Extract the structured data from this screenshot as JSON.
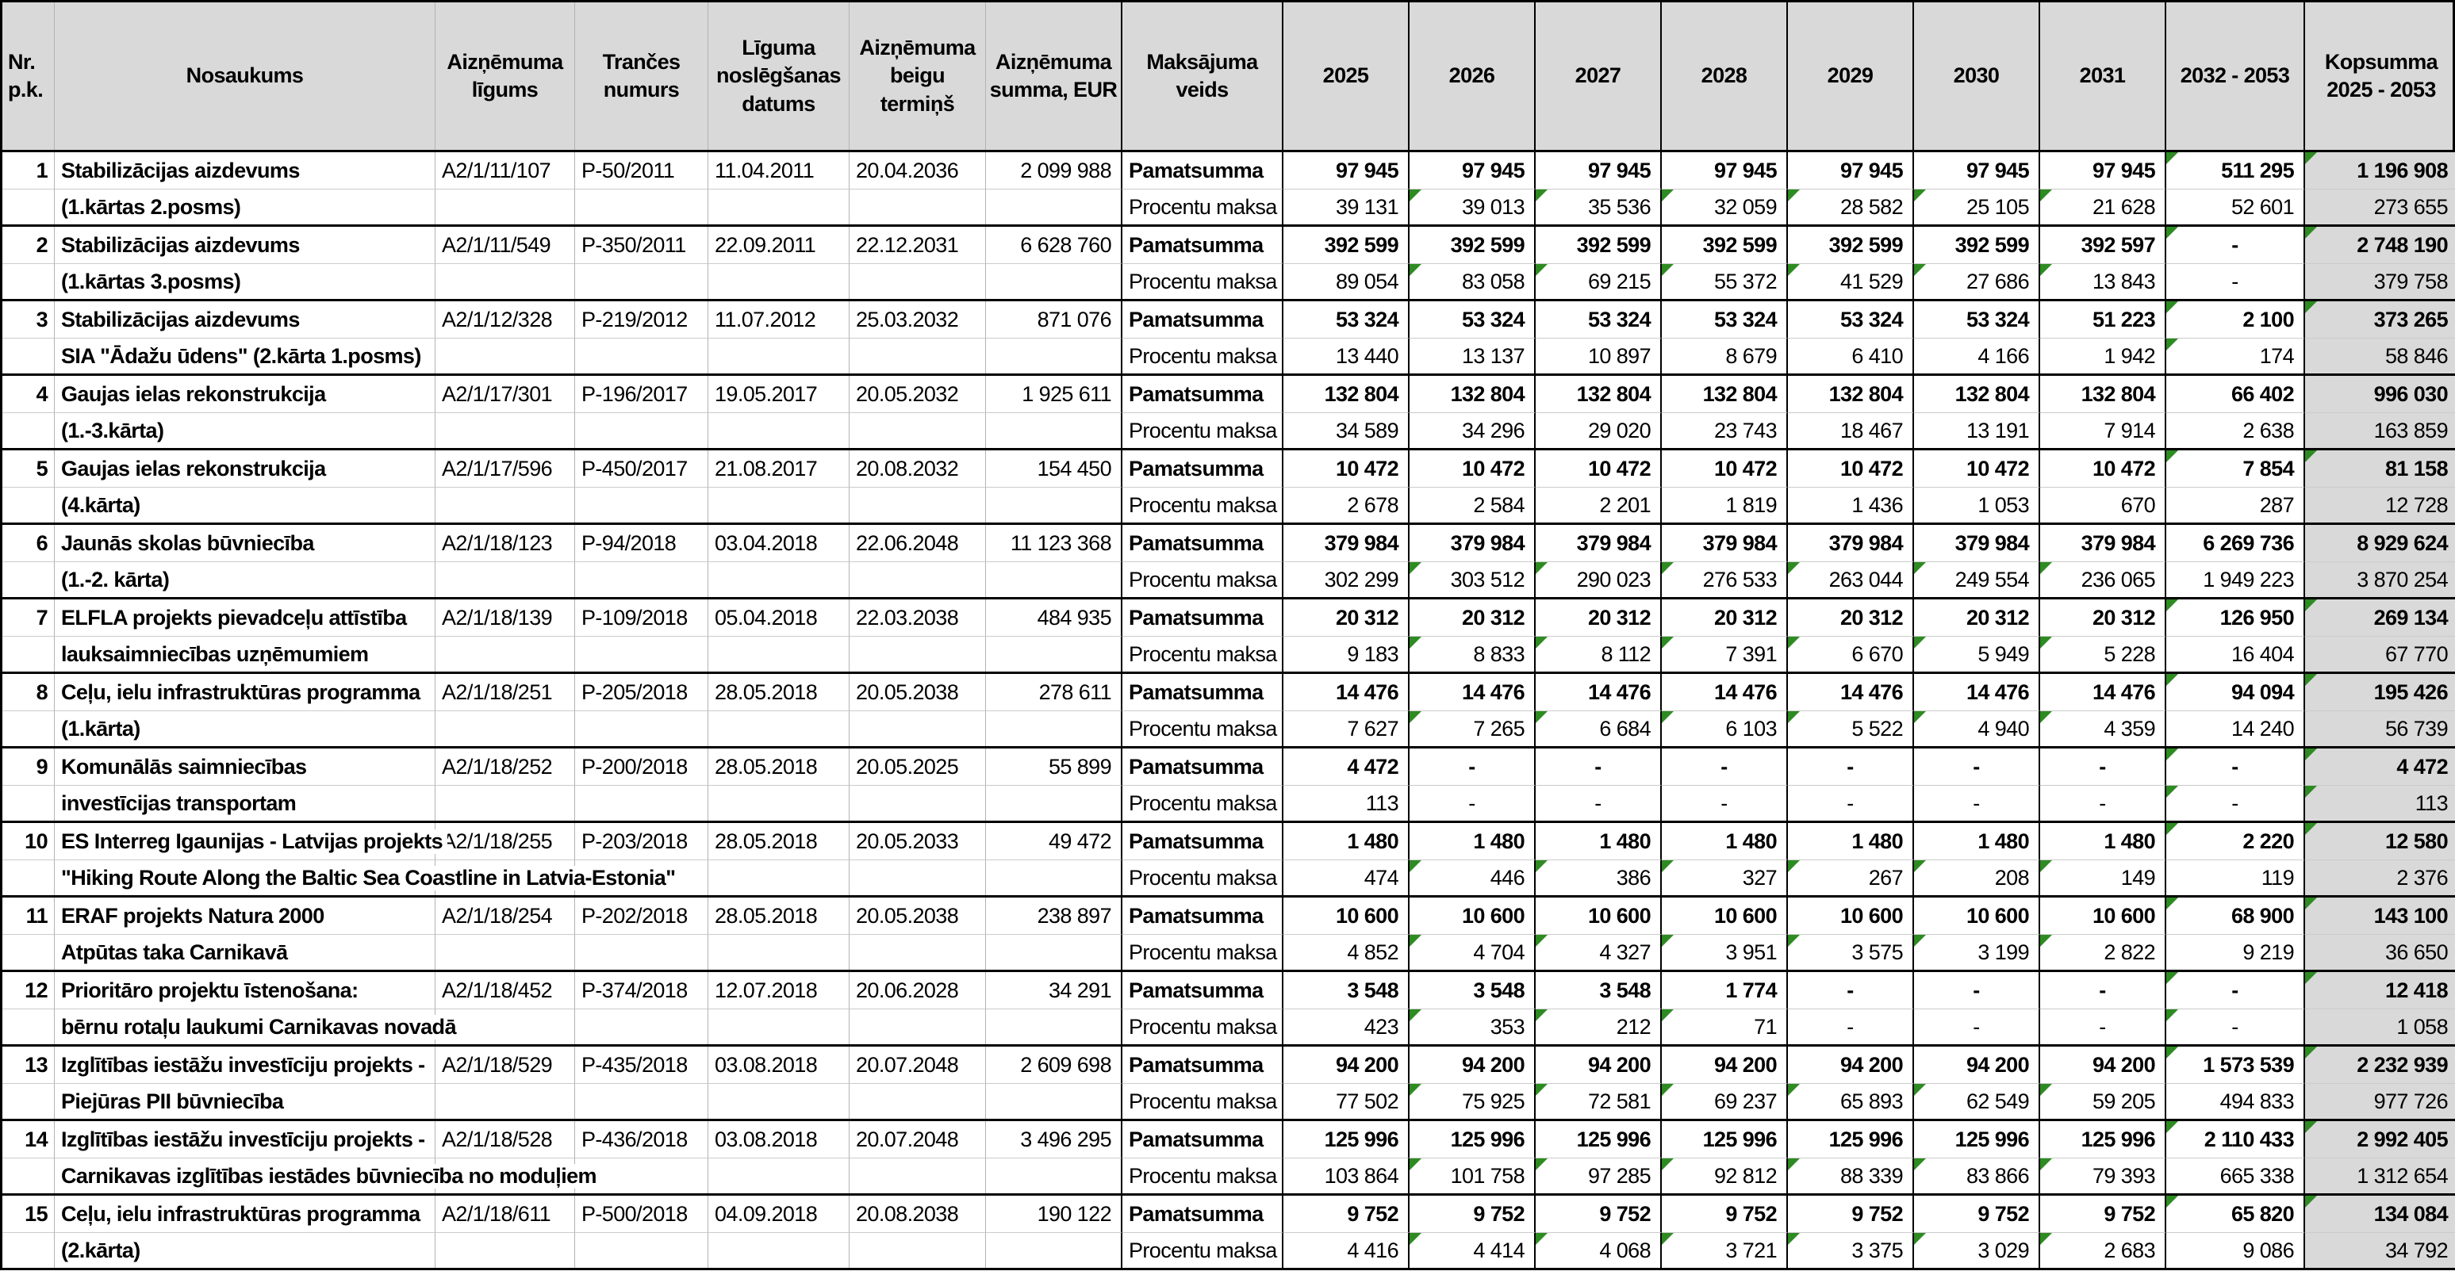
{
  "meta": {
    "description": "Municipal loan repayment schedule table (Latvian), amounts in EUR",
    "colors": {
      "header_bg": "#d9d9d9",
      "total_column_bg": "#d9d9d9",
      "flag_green": "#2e8b22"
    }
  },
  "header": {
    "columns": [
      "Nr.\np.k.",
      "Nosaukums",
      "Aizņēmuma\nlīgums",
      "Trančes\nnumurs",
      "Līguma\nnoslēgšanas\ndatums",
      "Aizņēmuma\nbeigu\ntermiņš",
      "Aizņēmuma\nsumma, EUR",
      "Maksājuma\nveids",
      "2025",
      "2026",
      "2027",
      "2028",
      "2029",
      "2030",
      "2031",
      "2032 - 2053",
      "Kopsumma\n2025 - 2053"
    ]
  },
  "payment_labels": {
    "principal": "Pamatsumma",
    "interest": "Procentu maksa"
  },
  "loans": [
    {
      "nr": "1",
      "name1": "Stabilizācijas aizdevums",
      "name2": "(1.kārtas 2.posms)",
      "agreement": "A2/1/11/107",
      "tranche": "P-50/2011",
      "signed": "11.04.2011",
      "maturity": "20.04.2036",
      "amount": "2 099 988",
      "principal": {
        "values": [
          "97 945",
          "97 945",
          "97 945",
          "97 945",
          "97 945",
          "97 945",
          "97 945",
          "511 295",
          "1 196 908"
        ],
        "flags": [
          7,
          8
        ]
      },
      "interest": {
        "values": [
          "39 131",
          "39 013",
          "35 536",
          "32 059",
          "28 582",
          "25 105",
          "21 628",
          "52 601",
          "273 655"
        ],
        "flags": [
          1,
          2,
          3,
          4,
          5,
          6
        ]
      }
    },
    {
      "nr": "2",
      "name1": "Stabilizācijas aizdevums",
      "name2": "(1.kārtas 3.posms)",
      "agreement": "A2/1/11/549",
      "tranche": "P-350/2011",
      "signed": "22.09.2011",
      "maturity": "22.12.2031",
      "amount": "6 628 760",
      "principal": {
        "values": [
          "392 599",
          "392 599",
          "392 599",
          "392 599",
          "392 599",
          "392 599",
          "392 597",
          "-",
          "2 748 190"
        ],
        "flags": [
          7,
          8
        ]
      },
      "interest": {
        "values": [
          "89 054",
          "83 058",
          "69 215",
          "55 372",
          "41 529",
          "27 686",
          "13 843",
          "-",
          "379 758"
        ],
        "flags": [
          1,
          2,
          3,
          4,
          5,
          6
        ]
      }
    },
    {
      "nr": "3",
      "name1": "Stabilizācijas aizdevums",
      "name2": "SIA \"Ādažu ūdens\" (2.kārta 1.posms)",
      "agreement": "A2/1/12/328",
      "tranche": "P-219/2012",
      "signed": "11.07.2012",
      "maturity": "25.03.2032",
      "amount": "871 076",
      "principal": {
        "values": [
          "53 324",
          "53 324",
          "53 324",
          "53 324",
          "53 324",
          "53 324",
          "51 223",
          "2 100",
          "373 265"
        ],
        "flags": [
          7,
          8
        ]
      },
      "interest": {
        "values": [
          "13 440",
          "13 137",
          "10 897",
          "8 679",
          "6 410",
          "4 166",
          "1 942",
          "174",
          "58 846"
        ],
        "flags": [
          7
        ]
      }
    },
    {
      "nr": "4",
      "name1": "Gaujas ielas rekonstrukcija",
      "name2": "(1.-3.kārta)",
      "agreement": "A2/1/17/301",
      "tranche": "P-196/2017",
      "signed": "19.05.2017",
      "maturity": "20.05.2032",
      "amount": "1 925 611",
      "principal": {
        "values": [
          "132 804",
          "132 804",
          "132 804",
          "132 804",
          "132 804",
          "132 804",
          "132 804",
          "66 402",
          "996 030"
        ],
        "flags": []
      },
      "interest": {
        "values": [
          "34 589",
          "34 296",
          "29 020",
          "23 743",
          "18 467",
          "13 191",
          "7 914",
          "2 638",
          "163 859"
        ],
        "flags": []
      }
    },
    {
      "nr": "5",
      "name1": "Gaujas ielas rekonstrukcija",
      "name2": "(4.kārta)",
      "agreement": "A2/1/17/596",
      "tranche": "P-450/2017",
      "signed": "21.08.2017",
      "maturity": "20.08.2032",
      "amount": "154 450",
      "principal": {
        "values": [
          "10 472",
          "10 472",
          "10 472",
          "10 472",
          "10 472",
          "10 472",
          "10 472",
          "7 854",
          "81 158"
        ],
        "flags": [
          7,
          8
        ]
      },
      "interest": {
        "values": [
          "2 678",
          "2 584",
          "2 201",
          "1 819",
          "1 436",
          "1 053",
          "670",
          "287",
          "12 728"
        ],
        "flags": []
      }
    },
    {
      "nr": "6",
      "name1": "Jaunās skolas būvniecība",
      "name2": "(1.-2. kārta)",
      "agreement": "A2/1/18/123",
      "tranche": "P-94/2018",
      "signed": "03.04.2018",
      "maturity": "22.06.2048",
      "amount": "11 123 368",
      "principal": {
        "values": [
          "379 984",
          "379 984",
          "379 984",
          "379 984",
          "379 984",
          "379 984",
          "379 984",
          "6 269 736",
          "8 929 624"
        ],
        "flags": []
      },
      "interest": {
        "values": [
          "302 299",
          "303 512",
          "290 023",
          "276 533",
          "263 044",
          "249 554",
          "236 065",
          "1 949 223",
          "3 870 254"
        ],
        "flags": [
          1,
          2,
          3,
          4,
          5,
          6
        ]
      }
    },
    {
      "nr": "7",
      "name1": "ELFLA projekts pievadceļu attīstība",
      "name2": "lauksaimniecības uzņēmumiem",
      "agreement": "A2/1/18/139",
      "tranche": "P-109/2018",
      "signed": "05.04.2018",
      "maturity": "22.03.2038",
      "amount": "484 935",
      "principal": {
        "values": [
          "20 312",
          "20 312",
          "20 312",
          "20 312",
          "20 312",
          "20 312",
          "20 312",
          "126 950",
          "269 134"
        ],
        "flags": [
          7,
          8
        ]
      },
      "interest": {
        "values": [
          "9 183",
          "8 833",
          "8 112",
          "7 391",
          "6 670",
          "5 949",
          "5 228",
          "16 404",
          "67 770"
        ],
        "flags": [
          1,
          2,
          3,
          4,
          5,
          6
        ]
      }
    },
    {
      "nr": "8",
      "name1": "Ceļu, ielu infrastruktūras programma",
      "name2": "(1.kārta)",
      "agreement": "A2/1/18/251",
      "tranche": "P-205/2018",
      "signed": "28.05.2018",
      "maturity": "20.05.2038",
      "amount": "278 611",
      "principal": {
        "values": [
          "14 476",
          "14 476",
          "14 476",
          "14 476",
          "14 476",
          "14 476",
          "14 476",
          "94 094",
          "195 426"
        ],
        "flags": [
          7,
          8
        ]
      },
      "interest": {
        "values": [
          "7 627",
          "7 265",
          "6 684",
          "6 103",
          "5 522",
          "4 940",
          "4 359",
          "14 240",
          "56 739"
        ],
        "flags": [
          1,
          2,
          3,
          4,
          5,
          6
        ]
      }
    },
    {
      "nr": "9",
      "name1": "Komunālās saimniecības",
      "name2": "investīcijas transportam",
      "agreement": "A2/1/18/252",
      "tranche": "P-200/2018",
      "signed": "28.05.2018",
      "maturity": "20.05.2025",
      "amount": "55 899",
      "principal": {
        "values": [
          "4 472",
          "-",
          "-",
          "-",
          "-",
          "-",
          "-",
          "-",
          "4 472"
        ],
        "flags": [
          7,
          8
        ]
      },
      "interest": {
        "values": [
          "113",
          "-",
          "-",
          "-",
          "-",
          "-",
          "-",
          "-",
          "113"
        ],
        "flags": [
          7,
          8
        ]
      }
    },
    {
      "nr": "10",
      "name1": "ES Interreg Igaunijas - Latvijas projekts",
      "name2": "\"Hiking Route Along the Baltic Sea Coastline in Latvia-Estonia\"",
      "agreement": "A2/1/18/255",
      "tranche": "P-203/2018",
      "signed": "28.05.2018",
      "maturity": "20.05.2033",
      "amount": "49 472",
      "principal": {
        "values": [
          "1 480",
          "1 480",
          "1 480",
          "1 480",
          "1 480",
          "1 480",
          "1 480",
          "2 220",
          "12 580"
        ],
        "flags": [
          7,
          8
        ]
      },
      "interest": {
        "values": [
          "474",
          "446",
          "386",
          "327",
          "267",
          "208",
          "149",
          "119",
          "2 376"
        ],
        "flags": [
          1,
          2,
          3,
          4,
          5,
          6
        ]
      }
    },
    {
      "nr": "11",
      "name1": "ERAF projekts Natura 2000",
      "name2": "Atpūtas taka Carnikavā",
      "agreement": "A2/1/18/254",
      "tranche": "P-202/2018",
      "signed": "28.05.2018",
      "maturity": "20.05.2038",
      "amount": "238 897",
      "principal": {
        "values": [
          "10 600",
          "10 600",
          "10 600",
          "10 600",
          "10 600",
          "10 600",
          "10 600",
          "68 900",
          "143 100"
        ],
        "flags": [
          7,
          8
        ]
      },
      "interest": {
        "values": [
          "4 852",
          "4 704",
          "4 327",
          "3 951",
          "3 575",
          "3 199",
          "2 822",
          "9 219",
          "36 650"
        ],
        "flags": [
          1,
          2,
          3,
          4,
          5,
          6
        ]
      }
    },
    {
      "nr": "12",
      "name1": "Prioritāro projektu īstenošana:",
      "name2": "bērnu rotaļu laukumi Carnikavas novadā",
      "agreement": "A2/1/18/452",
      "tranche": "P-374/2018",
      "signed": "12.07.2018",
      "maturity": "20.06.2028",
      "amount": "34 291",
      "principal": {
        "values": [
          "3 548",
          "3 548",
          "3 548",
          "1 774",
          "-",
          "-",
          "-",
          "-",
          "12 418"
        ],
        "flags": [
          7,
          8
        ]
      },
      "interest": {
        "values": [
          "423",
          "353",
          "212",
          "71",
          "-",
          "-",
          "-",
          "-",
          "1 058"
        ],
        "flags": [
          1,
          2,
          3,
          7
        ]
      }
    },
    {
      "nr": "13",
      "name1": "Izglītības iestāžu investīciju projekts -",
      "name2": "Piejūras PII būvniecība",
      "agreement": "A2/1/18/529",
      "tranche": "P-435/2018",
      "signed": "03.08.2018",
      "maturity": "20.07.2048",
      "amount": "2 609 698",
      "principal": {
        "values": [
          "94 200",
          "94 200",
          "94 200",
          "94 200",
          "94 200",
          "94 200",
          "94 200",
          "1 573 539",
          "2 232 939"
        ],
        "flags": [
          7,
          8
        ]
      },
      "interest": {
        "values": [
          "77 502",
          "75 925",
          "72 581",
          "69 237",
          "65 893",
          "62 549",
          "59 205",
          "494 833",
          "977 726"
        ],
        "flags": [
          1,
          2,
          3,
          4,
          5,
          6
        ]
      }
    },
    {
      "nr": "14",
      "name1": "Izglītības iestāžu investīciju projekts -",
      "name2": "Carnikavas izglītības iestādes būvniecība no moduļiem",
      "agreement": "A2/1/18/528",
      "tranche": "P-436/2018",
      "signed": "03.08.2018",
      "maturity": "20.07.2048",
      "amount": "3 496 295",
      "principal": {
        "values": [
          "125 996",
          "125 996",
          "125 996",
          "125 996",
          "125 996",
          "125 996",
          "125 996",
          "2 110 433",
          "2 992 405"
        ],
        "flags": [
          7,
          8
        ]
      },
      "interest": {
        "values": [
          "103 864",
          "101 758",
          "97 285",
          "92 812",
          "88 339",
          "83 866",
          "79 393",
          "665 338",
          "1 312 654"
        ],
        "flags": [
          1,
          2,
          3,
          4,
          5,
          6
        ]
      }
    },
    {
      "nr": "15",
      "name1": "Ceļu, ielu infrastruktūras programma",
      "name2": "(2.kārta)",
      "agreement": "A2/1/18/611",
      "tranche": "P-500/2018",
      "signed": "04.09.2018",
      "maturity": "20.08.2038",
      "amount": "190 122",
      "principal": {
        "values": [
          "9 752",
          "9 752",
          "9 752",
          "9 752",
          "9 752",
          "9 752",
          "9 752",
          "65 820",
          "134 084"
        ],
        "flags": [
          7,
          8
        ]
      },
      "interest": {
        "values": [
          "4 416",
          "4 414",
          "4 068",
          "3 721",
          "3 375",
          "3 029",
          "2 683",
          "9 086",
          "34 792"
        ],
        "flags": [
          1,
          2,
          3,
          4,
          5,
          6
        ]
      }
    }
  ]
}
